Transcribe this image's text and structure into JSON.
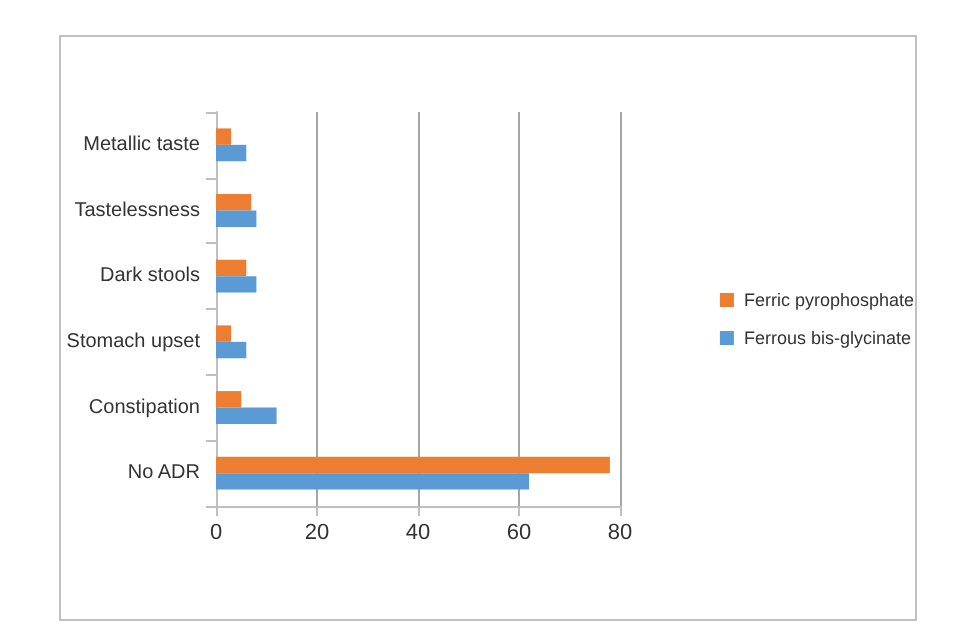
{
  "chart_data": {
    "type": "bar",
    "orientation": "horizontal",
    "categories": [
      "Metallic taste",
      "Tastelessness",
      "Dark stools",
      "Stomach upset",
      "Constipation",
      "No ADR"
    ],
    "series": [
      {
        "name": "Ferric pyrophosphate",
        "color": "#ed7d31",
        "values": [
          3,
          7,
          6,
          3,
          5,
          78
        ]
      },
      {
        "name": "Ferrous bis-glycinate",
        "color": "#5b9bd5",
        "values": [
          6,
          8,
          8,
          6,
          12,
          62
        ]
      }
    ],
    "xlim": [
      0,
      80
    ],
    "xticks": [
      0,
      20,
      40,
      60,
      80
    ],
    "grid": "x",
    "legend": "right"
  }
}
